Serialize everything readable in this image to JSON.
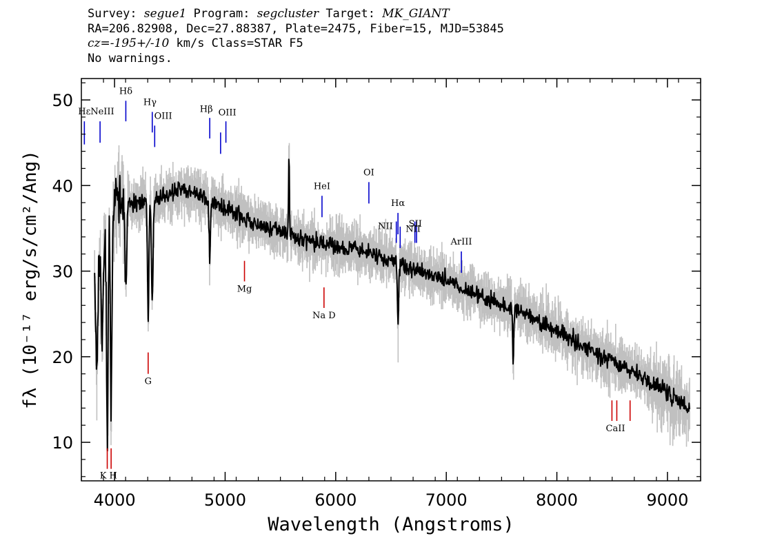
{
  "header": {
    "line1": {
      "survey_label": "Survey: ",
      "survey": "segue1",
      "program_label": " Program: ",
      "program": "segcluster",
      "target_label": " Target: ",
      "target": "MK_GIANT"
    },
    "line2": "RA=206.82908, Dec=27.88387, Plate=2475, Fiber=15, MJD=53845",
    "line3": {
      "cz": "cz=-195+/-10",
      "rest": " km/s Class=STAR F5"
    },
    "line4": "No warnings."
  },
  "chart_data": {
    "type": "line",
    "xlabel": "Wavelength (Angstroms)",
    "ylabel": "fλ (10⁻¹⁷ erg/s/cm²/Ang)",
    "xlim": [
      3700,
      9300
    ],
    "ylim": [
      5.5,
      52.5
    ],
    "x_ticks": [
      4000,
      5000,
      6000,
      7000,
      8000,
      9000
    ],
    "y_ticks": [
      10,
      20,
      30,
      40,
      50
    ],
    "series": [
      {
        "style": "noisy-spectrum",
        "color": "#000000",
        "noise_color": "#c0c0c0",
        "x": [
          3820,
          3850,
          3900,
          3940,
          3970,
          4000,
          4050,
          4100,
          4150,
          4200,
          4250,
          4300,
          4350,
          4400,
          4500,
          4600,
          4700,
          4800,
          4850,
          4900,
          5000,
          5100,
          5200,
          5300,
          5400,
          5500,
          5600,
          5700,
          5800,
          5900,
          6000,
          6100,
          6200,
          6300,
          6400,
          6500,
          6600,
          6700,
          6800,
          6900,
          7000,
          7100,
          7200,
          7300,
          7400,
          7500,
          7600,
          7700,
          7800,
          7900,
          8000,
          8100,
          8200,
          8300,
          8400,
          8500,
          8600,
          8700,
          8800,
          8900,
          9000,
          9100,
          9200
        ],
        "y": [
          29,
          30,
          34,
          36,
          37,
          38,
          39,
          38.5,
          38,
          38,
          38,
          38,
          38.3,
          38.5,
          39,
          39.5,
          39.2,
          38.8,
          38.5,
          38,
          37.3,
          36.8,
          36,
          35.5,
          35,
          34.7,
          34.2,
          33.8,
          33.5,
          33.2,
          33,
          32.8,
          32.5,
          32,
          31.5,
          31.3,
          30.8,
          30.2,
          29.8,
          29.3,
          29,
          28.3,
          27.8,
          27,
          26.5,
          26,
          25.7,
          25.2,
          24.5,
          23.6,
          23,
          22.3,
          21.5,
          20.8,
          20,
          19.6,
          18.8,
          18.2,
          17.3,
          16.5,
          15.8,
          15,
          14
        ]
      }
    ],
    "annotations": [
      {
        "label": "Hε",
        "wavelength": 3727,
        "color": "#0000cc",
        "y_tip": 44.8,
        "y_top": 47.5
      },
      {
        "label": "NeIII",
        "wavelength": 3869,
        "color": "#0000cc",
        "y_tip": 45.0,
        "y_top": 47.5
      },
      {
        "label": "Hδ",
        "wavelength": 4102,
        "color": "#0000cc",
        "y_tip": 47.5,
        "y_top": 49.9
      },
      {
        "label": "Hγ",
        "wavelength": 4341,
        "color": "#0000cc",
        "y_tip": 46.2,
        "y_top": 48.6
      },
      {
        "label": "OIII",
        "wavelength": 4363,
        "color": "#0000cc",
        "y_tip": 44.5,
        "y_top": 47.0
      },
      {
        "label": "Hβ",
        "wavelength": 4861,
        "color": "#0000cc",
        "y_tip": 45.5,
        "y_top": 47.9
      },
      {
        "label": "OIII",
        "wavelength": 4959,
        "color": "#0000cc",
        "y_tip": 43.7,
        "y_top": 46.2
      },
      {
        "label": "OIII",
        "wavelength": 5007,
        "color": "#0000cc",
        "y_tip": 45.0,
        "y_top": 47.5
      },
      {
        "label": "HeI",
        "wavelength": 5876,
        "color": "#0000cc",
        "y_tip": 36.3,
        "y_top": 38.8
      },
      {
        "label": "OI",
        "wavelength": 6300,
        "color": "#0000cc",
        "y_tip": 37.9,
        "y_top": 40.4
      },
      {
        "label": "NII",
        "wavelength": 6548,
        "color": "#0000cc",
        "y_tip": 33.3,
        "y_top": 35.8
      },
      {
        "label": "Hα",
        "wavelength": 6563,
        "color": "#0000cc",
        "y_tip": 34.3,
        "y_top": 36.8
      },
      {
        "label": "NII",
        "wavelength": 6583,
        "color": "#0000cc",
        "y_tip": 32.7,
        "y_top": 35.2
      },
      {
        "label": "SII",
        "wavelength": 6716,
        "color": "#0000cc",
        "y_tip": 33.3,
        "y_top": 35.8
      },
      {
        "label": "SII",
        "wavelength": 6731,
        "color": "#0000cc",
        "y_tip": 33.3,
        "y_top": 35.8
      },
      {
        "label": "ArIII",
        "wavelength": 7136,
        "color": "#0000cc",
        "y_tip": 29.8,
        "y_top": 32.3
      },
      {
        "label": "K",
        "wavelength": 3934,
        "color": "#cc0000",
        "y_tip": 9.3,
        "y_top": 6.9
      },
      {
        "label": "H",
        "wavelength": 3969,
        "color": "#cc0000",
        "y_tip": 9.3,
        "y_top": 6.9
      },
      {
        "label": "G",
        "wavelength": 4304,
        "color": "#cc0000",
        "y_tip": 20.5,
        "y_top": 18.0
      },
      {
        "label": "Mg",
        "wavelength": 5175,
        "color": "#cc0000",
        "y_tip": 31.2,
        "y_top": 28.8
      },
      {
        "label": "Na",
        "wavelength": 5894,
        "color": "#cc0000",
        "y_tip": 28.1,
        "y_top": 25.7
      },
      {
        "label": "CaII",
        "wavelength": 8498,
        "color": "#cc0000",
        "y_tip": 14.9,
        "y_top": 12.5
      },
      {
        "label": "CaII",
        "wavelength": 8542,
        "color": "#cc0000",
        "y_tip": 14.9,
        "y_top": 12.5
      },
      {
        "label": "CaII",
        "wavelength": 8662,
        "color": "#cc0000",
        "y_tip": 14.9,
        "y_top": 12.5
      }
    ],
    "features": [
      {
        "wavelength": 3840,
        "depth": 12,
        "width": 8
      },
      {
        "wavelength": 3889,
        "depth": 12,
        "width": 8
      },
      {
        "wavelength": 3934,
        "depth": 26,
        "width": 7
      },
      {
        "wavelength": 3969,
        "depth": 23,
        "width": 7
      },
      {
        "wavelength": 4102,
        "depth": 10,
        "width": 8
      },
      {
        "wavelength": 4304,
        "depth": 14,
        "width": 6
      },
      {
        "wavelength": 4341,
        "depth": 12,
        "width": 7
      },
      {
        "wavelength": 4861,
        "depth": 7,
        "width": 6
      },
      {
        "wavelength": 5578,
        "depth": -10,
        "width": 4
      },
      {
        "wavelength": 6563,
        "depth": 7,
        "width": 6
      },
      {
        "wavelength": 7605,
        "depth": 6,
        "width": 5
      }
    ],
    "labels": [
      {
        "text": "Hε",
        "wavelength": 3727,
        "y": 48.3
      },
      {
        "text": "NeIII",
        "wavelength": 3890,
        "y": 48.3
      },
      {
        "text": "Hδ",
        "wavelength": 4102,
        "y": 50.7
      },
      {
        "text": "Hγ",
        "wavelength": 4320,
        "y": 49.4
      },
      {
        "text": "OIII",
        "wavelength": 4440,
        "y": 47.8
      },
      {
        "text": "Hβ",
        "wavelength": 4830,
        "y": 48.6
      },
      {
        "text": "OIII",
        "wavelength": 5020,
        "y": 48.2
      },
      {
        "text": "HeI",
        "wavelength": 5876,
        "y": 39.6
      },
      {
        "text": "OI",
        "wavelength": 6300,
        "y": 41.2
      },
      {
        "text": "NII",
        "wavelength": 6450,
        "y": 34.9
      },
      {
        "text": "Hα",
        "wavelength": 6563,
        "y": 37.6
      },
      {
        "text": "NII",
        "wavelength": 6700,
        "y": 34.6
      },
      {
        "text": "SII",
        "wavelength": 6720,
        "y": 35.2
      },
      {
        "text": "ArIII",
        "wavelength": 7136,
        "y": 33.1
      },
      {
        "text": "K H",
        "wavelength": 3945,
        "y": 5.8
      },
      {
        "text": "G",
        "wavelength": 4304,
        "y": 16.8
      },
      {
        "text": "Mg",
        "wavelength": 5175,
        "y": 27.6
      },
      {
        "text": "Na D",
        "wavelength": 5894,
        "y": 24.5
      },
      {
        "text": "CaII",
        "wavelength": 8530,
        "y": 11.3
      }
    ]
  }
}
